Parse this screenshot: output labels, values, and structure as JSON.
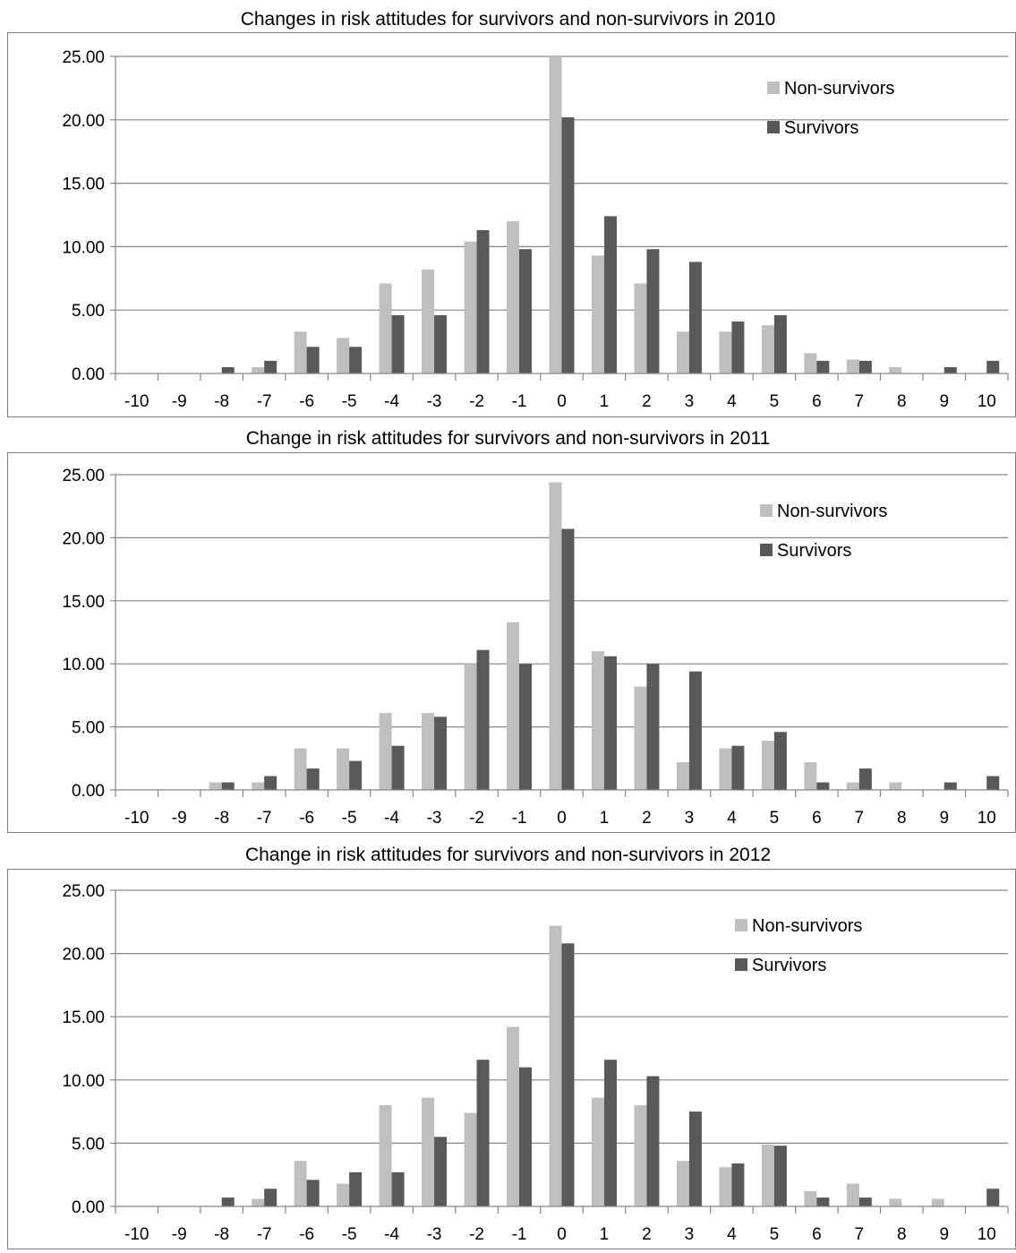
{
  "colors": {
    "nonsurvivors": "#bfbfbf",
    "survivors": "#595959",
    "grid": "#868686",
    "axis": "#000000"
  },
  "chart_data": [
    {
      "type": "bar",
      "title": "Changes in risk attitudes for survivors and non-survivors in 2010",
      "categories": [
        "-10",
        "-9",
        "-8",
        "-7",
        "-6",
        "-5",
        "-4",
        "-3",
        "-2",
        "-1",
        "0",
        "1",
        "2",
        "3",
        "4",
        "5",
        "6",
        "7",
        "8",
        "9",
        "10"
      ],
      "ylim": [
        0,
        25
      ],
      "yticks": [
        "0.00",
        "5.00",
        "10.00",
        "15.00",
        "20.00",
        "25.00"
      ],
      "grid": true,
      "legend_position": "top-right",
      "series": [
        {
          "name": "Non-survivors",
          "values": [
            0,
            0,
            0,
            0.5,
            3.3,
            2.8,
            7.1,
            8.2,
            10.4,
            12.0,
            25.0,
            9.3,
            7.1,
            3.3,
            3.3,
            3.8,
            1.6,
            1.1,
            0.5,
            0,
            0
          ]
        },
        {
          "name": "Survivors",
          "values": [
            0,
            0,
            0.5,
            1.0,
            2.1,
            2.1,
            4.6,
            4.6,
            11.3,
            9.8,
            20.2,
            12.4,
            9.8,
            8.8,
            4.1,
            4.6,
            1.0,
            1.0,
            0,
            0.5,
            1.0
          ]
        }
      ]
    },
    {
      "type": "bar",
      "title": "Change in risk attitudes for survivors and non-survivors in 2011",
      "categories": [
        "-10",
        "-9",
        "-8",
        "-7",
        "-6",
        "-5",
        "-4",
        "-3",
        "-2",
        "-1",
        "0",
        "1",
        "2",
        "3",
        "4",
        "5",
        "6",
        "7",
        "8",
        "9",
        "10"
      ],
      "ylim": [
        0,
        25
      ],
      "yticks": [
        "0.00",
        "5.00",
        "10.00",
        "15.00",
        "20.00",
        "25.00"
      ],
      "grid": true,
      "legend_position": "top-right",
      "series": [
        {
          "name": "Non-survivors",
          "values": [
            0,
            0,
            0.6,
            0.6,
            3.3,
            3.3,
            6.1,
            6.1,
            10.0,
            13.3,
            24.4,
            11.0,
            8.2,
            2.2,
            3.3,
            3.9,
            2.2,
            0.6,
            0.6,
            0,
            0
          ]
        },
        {
          "name": "Survivors",
          "values": [
            0,
            0,
            0.6,
            1.1,
            1.7,
            2.3,
            3.5,
            5.8,
            11.1,
            10.0,
            20.7,
            10.6,
            10.0,
            9.4,
            3.5,
            4.6,
            0.6,
            1.7,
            0,
            0.6,
            1.1
          ]
        }
      ]
    },
    {
      "type": "bar",
      "title": "Change in risk attitudes for survivors and non-survivors in 2012",
      "categories": [
        "-10",
        "-9",
        "-8",
        "-7",
        "-6",
        "-5",
        "-4",
        "-3",
        "-2",
        "-1",
        "0",
        "1",
        "2",
        "3",
        "4",
        "5",
        "6",
        "7",
        "8",
        "9",
        "10"
      ],
      "ylim": [
        0,
        25
      ],
      "yticks": [
        "0.00",
        "5.00",
        "10.00",
        "15.00",
        "20.00",
        "25.00"
      ],
      "grid": true,
      "legend_position": "top-right",
      "series": [
        {
          "name": "Non-survivors",
          "values": [
            0,
            0,
            0,
            0.6,
            3.6,
            1.8,
            8.0,
            8.6,
            7.4,
            14.2,
            22.2,
            8.6,
            8.0,
            3.6,
            3.1,
            4.9,
            1.2,
            1.8,
            0.6,
            0.6,
            0
          ]
        },
        {
          "name": "Survivors",
          "values": [
            0,
            0,
            0.7,
            1.4,
            2.1,
            2.7,
            2.7,
            5.5,
            11.6,
            11.0,
            20.8,
            11.6,
            10.3,
            7.5,
            3.4,
            4.8,
            0.7,
            0.7,
            0,
            0,
            1.4
          ]
        }
      ]
    }
  ]
}
